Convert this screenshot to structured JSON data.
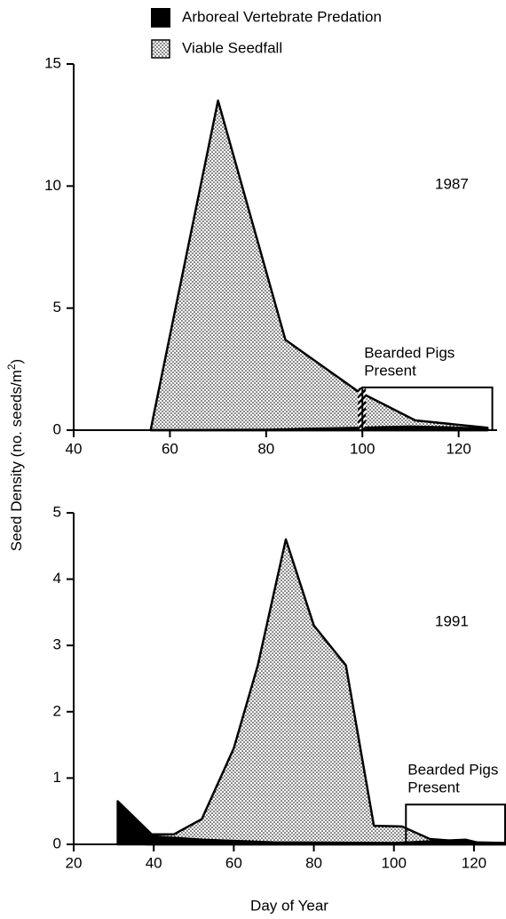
{
  "y_label": [
    "Seed Density (no. seeds/m",
    "2",
    ")"
  ],
  "x_label": "Day of Year",
  "chart_data": [
    {
      "type": "area",
      "year_label": "1987",
      "pigs_label": [
        "Bearded Pigs",
        "Present"
      ],
      "pigs_box": {
        "x": [
          100,
          127
        ],
        "y": 1.75
      },
      "xlim": [
        40,
        128
      ],
      "ylim": [
        0,
        15
      ],
      "xticks": [
        40,
        60,
        80,
        100,
        120
      ],
      "yticks": [
        0,
        5,
        10,
        15
      ],
      "series": [
        {
          "name": "Arboreal Vertebrate Predation",
          "color": "#000000",
          "x": [
            56,
            80,
            100,
            110,
            120,
            126
          ],
          "values": [
            0,
            0.02,
            0.1,
            0.15,
            0.1,
            0.05
          ]
        },
        {
          "name": "Viable Seedfall",
          "color": "#000000",
          "pattern": "dots",
          "x": [
            56,
            56.5,
            70,
            84,
            99,
            101,
            111,
            126
          ],
          "values": [
            0,
            0.5,
            13.5,
            3.7,
            1.6,
            1.4,
            0.4,
            0.1
          ]
        }
      ]
    },
    {
      "type": "area",
      "year_label": "1991",
      "pigs_label": [
        "Bearded Pigs",
        "Present"
      ],
      "pigs_box": {
        "x": [
          103,
          128
        ],
        "y": 0.6
      },
      "xlim": [
        20,
        128
      ],
      "ylim": [
        0,
        5
      ],
      "xticks": [
        20,
        40,
        60,
        80,
        100,
        120
      ],
      "yticks": [
        0,
        1,
        2,
        3,
        4,
        5
      ],
      "series": [
        {
          "name": "Arboreal Vertebrate Predation",
          "color": "#000000",
          "x": [
            31,
            31,
            40,
            52,
            70,
            100,
            118,
            122,
            128
          ],
          "values": [
            0,
            0.65,
            0.12,
            0.07,
            0.03,
            0.02,
            0.07,
            0.01,
            0
          ]
        },
        {
          "name": "Viable Seedfall",
          "color": "#000000",
          "pattern": "dots",
          "x": [
            38,
            45,
            52,
            60,
            66,
            73,
            80,
            88,
            95,
            102,
            109,
            120,
            128
          ],
          "values": [
            0.15,
            0.15,
            0.38,
            1.45,
            2.7,
            4.6,
            3.3,
            2.7,
            0.28,
            0.27,
            0.08,
            0.03,
            0.02
          ]
        }
      ]
    }
  ]
}
